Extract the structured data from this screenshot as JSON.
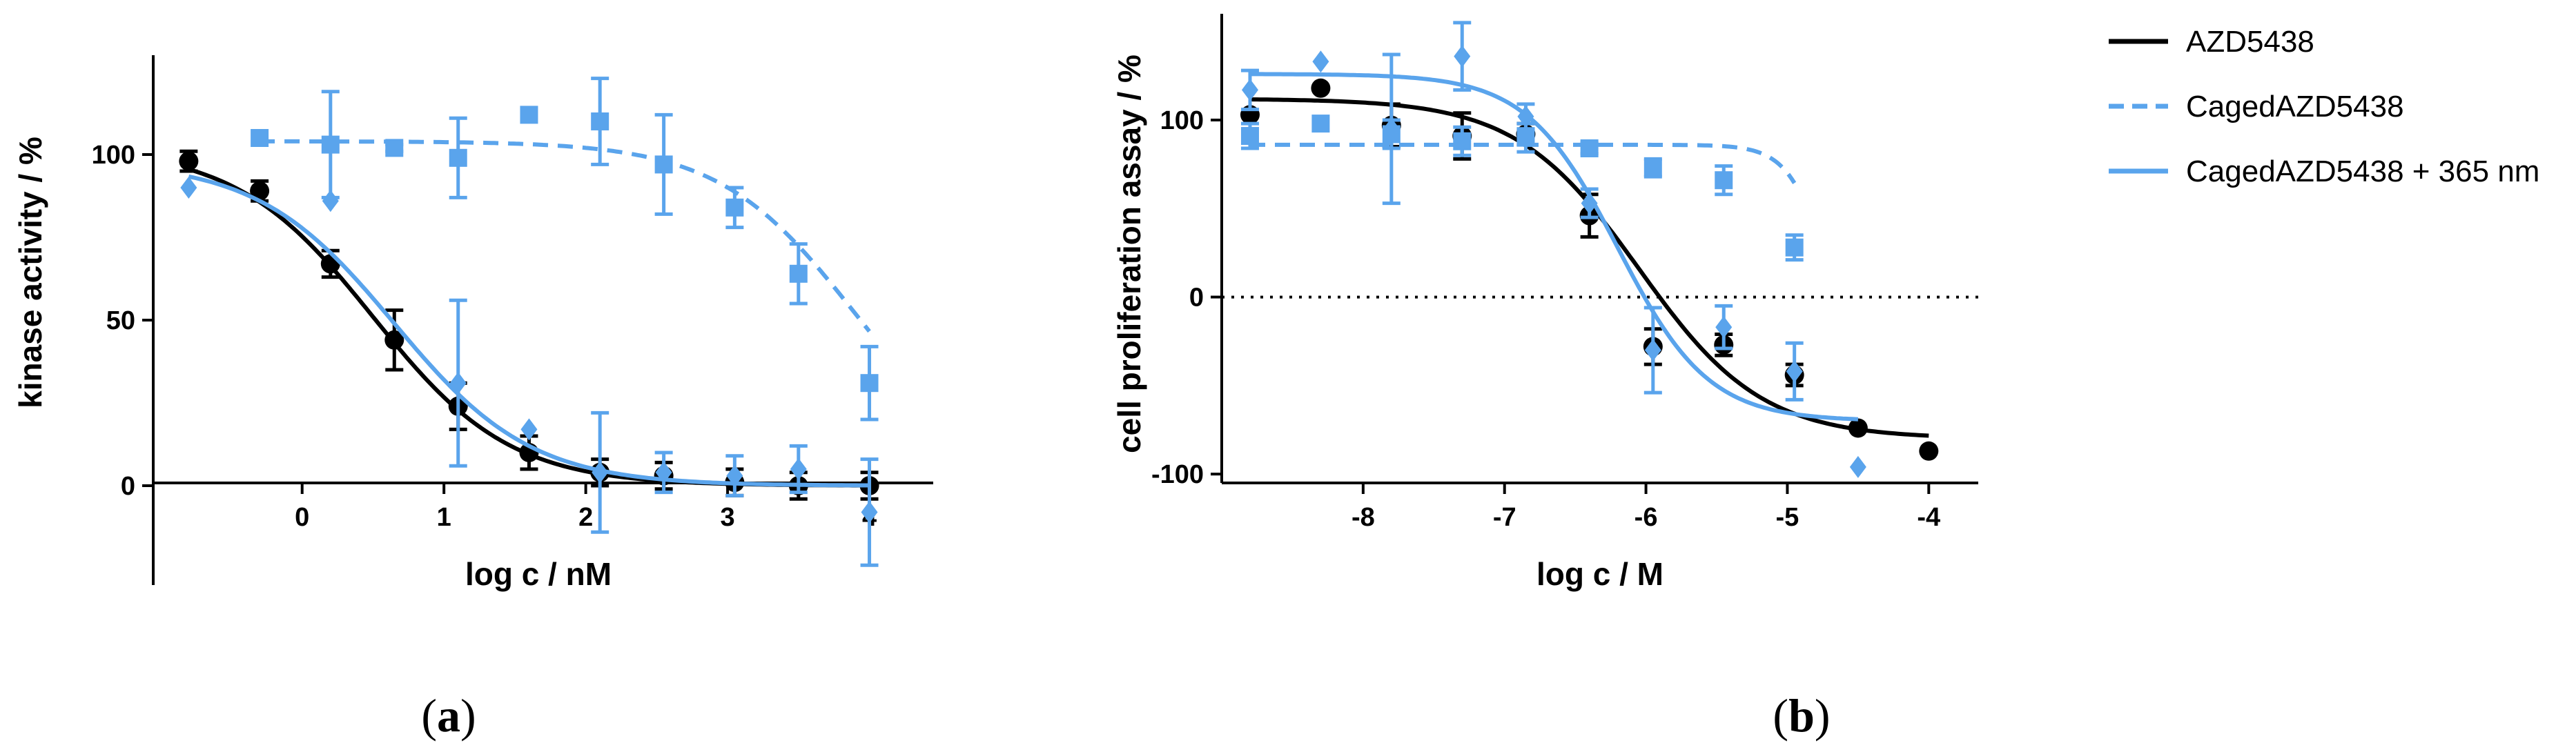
{
  "colors": {
    "black": "#000000",
    "blue": "#5aa4ec"
  },
  "panel_labels": {
    "a": {
      "open": "(",
      "letter": "a",
      "close": ")"
    },
    "b": {
      "open": "(",
      "letter": "b",
      "close": ")"
    }
  },
  "legend": [
    {
      "label": "AZD5438",
      "style": "solid",
      "color": "black"
    },
    {
      "label": "CagedAZD5438",
      "style": "dashed",
      "color": "blue"
    },
    {
      "label": "CagedAZD5438 + 365 nm",
      "style": "solid",
      "color": "blue"
    }
  ],
  "chart_data": [
    {
      "type": "scatter",
      "panel": "a",
      "title": "",
      "xlabel": "log c / nM",
      "ylabel": "kinase activity / %",
      "xlim": [
        -1.05,
        4.45
      ],
      "ylim": [
        -30,
        130
      ],
      "xticks": [
        0,
        1,
        2,
        3,
        4
      ],
      "yticks": [
        0,
        50,
        100
      ],
      "reference_line": null,
      "series": [
        {
          "name": "AZD5438",
          "color": "black",
          "marker": "circle",
          "line": "solid",
          "x": [
            -0.8,
            -0.3,
            0.2,
            0.65,
            1.1,
            1.6,
            2.1,
            2.55,
            3.05,
            3.5,
            4.0
          ],
          "y": [
            98,
            89,
            67,
            44,
            24,
            10,
            4,
            3,
            1,
            0,
            0
          ],
          "err": [
            3,
            3,
            4,
            9,
            7,
            5,
            4,
            4,
            4,
            4,
            4
          ],
          "fit": {
            "bottom": 0,
            "top": 102,
            "logEC50": 0.5,
            "hill": -0.9
          }
        },
        {
          "name": "CagedAZD5438",
          "color": "blue",
          "marker": "square",
          "line": "dashed",
          "x": [
            -0.3,
            0.2,
            0.65,
            1.1,
            1.6,
            2.1,
            2.55,
            3.05,
            3.5,
            4.0
          ],
          "y": [
            105,
            103,
            102,
            99,
            112,
            110,
            97,
            84,
            64,
            31
          ],
          "err": [
            0,
            16,
            1,
            12,
            0,
            13,
            15,
            6,
            9,
            11
          ],
          "fit": {
            "bottom": 0,
            "top": 104,
            "logEC50": 3.9,
            "hill": -0.9
          }
        },
        {
          "name": "CagedAZD5438 + 365 nm",
          "color": "blue",
          "marker": "diamond",
          "line": "solid",
          "x": [
            -0.8,
            0.2,
            1.1,
            1.6,
            2.1,
            2.55,
            3.05,
            3.5,
            4.0
          ],
          "y": [
            90,
            86,
            31,
            17,
            4,
            4,
            3,
            5,
            -8
          ],
          "err": [
            0,
            0,
            25,
            0,
            18,
            6,
            6,
            7,
            16
          ],
          "fit": {
            "bottom": 0,
            "top": 98,
            "logEC50": 0.65,
            "hill": -0.9
          }
        }
      ]
    },
    {
      "type": "scatter",
      "panel": "b",
      "title": "",
      "xlabel": "log c / M",
      "ylabel": "cell proliferation assay / %",
      "xlim": [
        -9.0,
        -3.65
      ],
      "ylim": [
        -105,
        160
      ],
      "xticks": [
        -8,
        -7,
        -6,
        -5,
        -4
      ],
      "yticks": [
        -100,
        0,
        100
      ],
      "reference_line": {
        "y": 0,
        "style": "dotted"
      },
      "series": [
        {
          "name": "AZD5438",
          "color": "black",
          "marker": "circle",
          "line": "solid",
          "x": [
            -8.8,
            -8.3,
            -7.8,
            -7.3,
            -6.85,
            -6.4,
            -5.95,
            -5.45,
            -4.95,
            -4.5,
            -4.0
          ],
          "y": [
            103,
            118,
            97,
            91,
            92,
            46,
            -28,
            -27,
            -44,
            -74,
            -87
          ],
          "err": [
            0,
            0,
            12,
            13,
            6,
            12,
            10,
            6,
            6,
            0,
            0
          ],
          "fit": {
            "bottom": -80,
            "top": 112,
            "logEC50": -6.05,
            "hill": -1.0
          }
        },
        {
          "name": "CagedAZD5438",
          "color": "blue",
          "marker": "square",
          "line": "dashed",
          "x": [
            -8.8,
            -8.3,
            -7.8,
            -7.3,
            -6.85,
            -6.4,
            -5.95,
            -5.45,
            -4.95
          ],
          "y": [
            91,
            98,
            92,
            88,
            90,
            84,
            73,
            66,
            28
          ],
          "err": [
            7,
            0,
            8,
            8,
            8,
            3,
            5,
            8,
            7
          ],
          "fit": {
            "bottom": -75,
            "top": 86,
            "logEC50": -4.68,
            "hill": -3.0
          }
        },
        {
          "name": "CagedAZD5438 + 365 nm",
          "color": "blue",
          "marker": "diamond",
          "line": "solid",
          "x": [
            -8.8,
            -8.3,
            -7.8,
            -7.3,
            -6.85,
            -6.4,
            -5.95,
            -5.45,
            -4.95,
            -4.5
          ],
          "y": [
            117,
            133,
            95,
            136,
            102,
            53,
            -30,
            -17,
            -42,
            -96
          ],
          "err": [
            11,
            0,
            42,
            19,
            7,
            8,
            24,
            12,
            16,
            0
          ],
          "fit": {
            "bottom": -70,
            "top": 126,
            "logEC50": -6.2,
            "hill": -1.35
          }
        }
      ]
    }
  ]
}
